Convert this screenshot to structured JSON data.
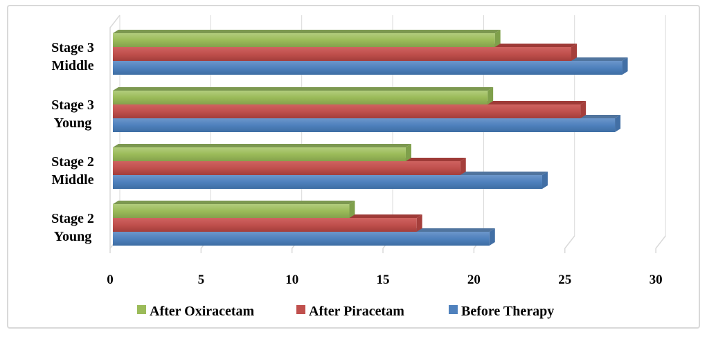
{
  "chart_data": {
    "type": "bar",
    "orientation": "horizontal",
    "style": "3d-clustered",
    "title": "",
    "xlabel": "",
    "ylabel": "",
    "categories": [
      [
        "Stage 3",
        "Middle"
      ],
      [
        "Stage 3",
        "Young"
      ],
      [
        "Stage 2",
        "Middle"
      ],
      [
        "Stage 2",
        "Young"
      ]
    ],
    "series": [
      {
        "name": "After Oxiracetam",
        "color": "#9BBB59",
        "top_color": "#7C9850",
        "cap_color": "#7FA04B",
        "gradient": [
          "#B2CD7D",
          "#9BBB59",
          "#84A14C"
        ],
        "values": [
          21.0,
          20.6,
          16.1,
          13.0
        ]
      },
      {
        "name": "After Piracetam",
        "color": "#C0504D",
        "top_color": "#9E3A37",
        "cap_color": "#A53F3C",
        "gradient": [
          "#CF6360",
          "#C0504D",
          "#A23E3B"
        ],
        "values": [
          25.2,
          25.7,
          19.1,
          16.7
        ]
      },
      {
        "name": "Before Therapy",
        "color": "#4F81BD",
        "top_color": "#50749E",
        "cap_color": "#426FA5",
        "gradient": [
          "#6C96CB",
          "#4F81BD",
          "#3D6DA3"
        ],
        "values": [
          28.0,
          27.6,
          23.6,
          20.7
        ]
      }
    ],
    "x_ticks": [
      "0",
      "5",
      "10",
      "15",
      "20",
      "25",
      "30"
    ],
    "x_tick_values": [
      0,
      5,
      10,
      15,
      20,
      25,
      30
    ],
    "xlim": [
      0,
      30
    ],
    "grid": true,
    "legend_position": "bottom"
  },
  "colors": {
    "background": "#FFFFFF",
    "border": "#D9D9D9",
    "gridline": "#D9D9D9",
    "text": "#000000"
  }
}
